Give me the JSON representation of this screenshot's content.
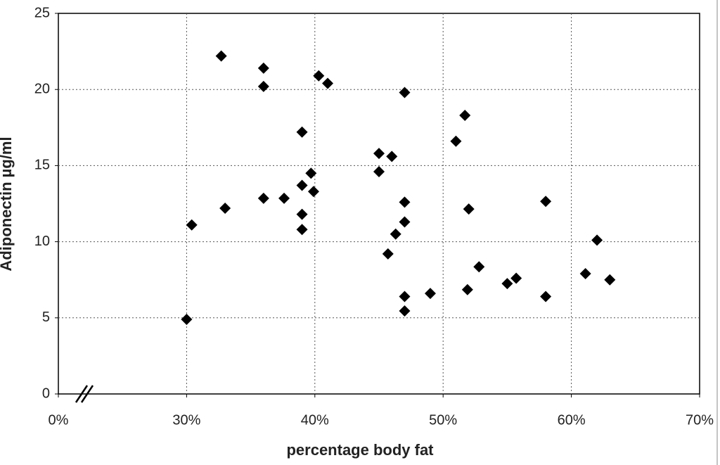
{
  "chart_data": {
    "type": "scatter",
    "xlabel": "percentage body fat",
    "ylabel": "Adiponectin µg/ml",
    "xlim": [
      0,
      70
    ],
    "x_axis_break": [
      0,
      20
    ],
    "xticks": [
      {
        "value": 0,
        "label": "0%"
      },
      {
        "value": 30,
        "label": "30%"
      },
      {
        "value": 40,
        "label": "40%"
      },
      {
        "value": 50,
        "label": "50%"
      },
      {
        "value": 60,
        "label": "60%"
      },
      {
        "value": 70,
        "label": "70%"
      }
    ],
    "ylim": [
      0,
      25
    ],
    "yticks": [
      0,
      5,
      10,
      15,
      20,
      25
    ],
    "grid": true,
    "color": "#000000",
    "series": [
      {
        "name": "Adiponectin",
        "color": "#000000",
        "x": [
          30.0,
          30.4,
          32.7,
          33.0,
          36.0,
          36.0,
          36.0,
          37.6,
          39.0,
          39.0,
          39.0,
          39.0,
          39.7,
          39.9,
          40.3,
          41.0,
          45.0,
          45.0,
          46.0,
          46.3,
          45.7,
          47.0,
          47.0,
          47.0,
          47.0,
          47.0,
          49.0,
          51.0,
          51.7,
          52.0,
          51.9,
          52.8,
          55.0,
          55.7,
          58.0,
          58.0,
          61.1,
          62.0,
          63.0
        ],
        "values": [
          4.9,
          11.1,
          22.2,
          12.2,
          21.4,
          20.2,
          12.85,
          12.85,
          17.2,
          13.7,
          11.8,
          10.8,
          14.5,
          13.3,
          20.9,
          20.4,
          15.8,
          14.6,
          15.6,
          10.5,
          9.2,
          19.8,
          12.6,
          11.3,
          6.4,
          5.45,
          6.6,
          16.6,
          18.3,
          12.15,
          6.85,
          8.35,
          7.25,
          7.6,
          6.4,
          12.65,
          7.9,
          10.1,
          7.5
        ]
      }
    ]
  }
}
